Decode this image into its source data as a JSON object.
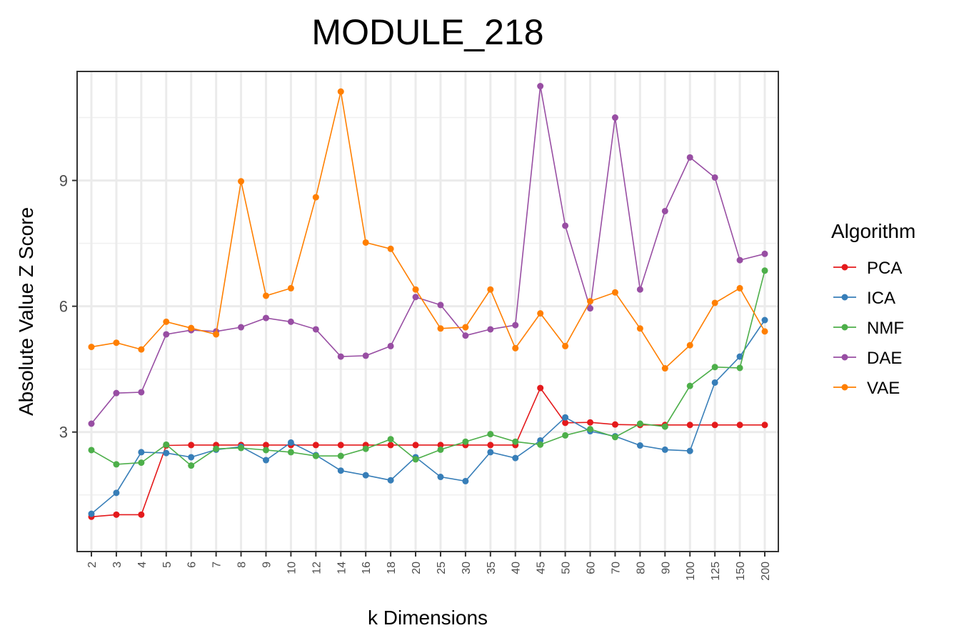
{
  "chart_data": {
    "type": "line",
    "title": "MODULE_218",
    "xlabel": "k Dimensions",
    "ylabel": "Absolute Value Z Score",
    "categories": [
      "2",
      "3",
      "4",
      "5",
      "6",
      "7",
      "8",
      "9",
      "10",
      "12",
      "14",
      "16",
      "18",
      "20",
      "25",
      "30",
      "35",
      "40",
      "45",
      "50",
      "60",
      "70",
      "80",
      "90",
      "100",
      "125",
      "150",
      "200"
    ],
    "ylim": [
      0.15,
      11.6
    ],
    "yticks": [
      3,
      6,
      9
    ],
    "grid": true,
    "legend": {
      "title": "Algorithm",
      "position": "right"
    },
    "series": [
      {
        "name": "PCA",
        "color": "#e41a1c",
        "values": [
          0.98,
          1.03,
          1.03,
          2.68,
          2.69,
          2.69,
          2.69,
          2.69,
          2.69,
          2.69,
          2.69,
          2.69,
          2.69,
          2.69,
          2.69,
          2.69,
          2.69,
          2.69,
          4.05,
          3.22,
          3.23,
          3.18,
          3.17,
          3.17,
          3.17,
          3.17,
          3.17,
          3.17
        ]
      },
      {
        "name": "ICA",
        "color": "#377eb8",
        "values": [
          1.05,
          1.55,
          2.52,
          2.5,
          2.4,
          2.58,
          2.65,
          2.33,
          2.75,
          2.45,
          2.08,
          1.97,
          1.85,
          2.4,
          1.93,
          1.83,
          2.52,
          2.38,
          2.8,
          3.35,
          3.02,
          2.9,
          2.68,
          2.58,
          2.55,
          4.18,
          4.8,
          5.67
        ]
      },
      {
        "name": "NMF",
        "color": "#4daf4a",
        "values": [
          2.57,
          2.23,
          2.27,
          2.7,
          2.2,
          2.6,
          2.62,
          2.57,
          2.52,
          2.43,
          2.43,
          2.6,
          2.83,
          2.35,
          2.58,
          2.77,
          2.95,
          2.77,
          2.7,
          2.92,
          3.07,
          2.88,
          3.2,
          3.13,
          4.1,
          4.55,
          4.53,
          6.85
        ]
      },
      {
        "name": "DAE",
        "color": "#984ea3",
        "values": [
          3.2,
          3.93,
          3.95,
          5.33,
          5.43,
          5.4,
          5.5,
          5.72,
          5.63,
          5.45,
          4.8,
          4.82,
          5.05,
          6.22,
          6.03,
          5.3,
          5.45,
          5.55,
          11.25,
          7.92,
          5.95,
          10.5,
          6.4,
          8.27,
          9.55,
          9.07,
          7.1,
          7.25
        ]
      },
      {
        "name": "VAE",
        "color": "#ff7f00",
        "values": [
          5.03,
          5.13,
          4.97,
          5.63,
          5.48,
          5.33,
          8.98,
          6.25,
          6.43,
          8.6,
          11.12,
          7.52,
          7.37,
          6.4,
          5.47,
          5.5,
          6.4,
          5.0,
          5.83,
          5.05,
          6.12,
          6.33,
          5.47,
          4.52,
          5.07,
          6.08,
          6.43,
          5.4
        ]
      }
    ]
  }
}
